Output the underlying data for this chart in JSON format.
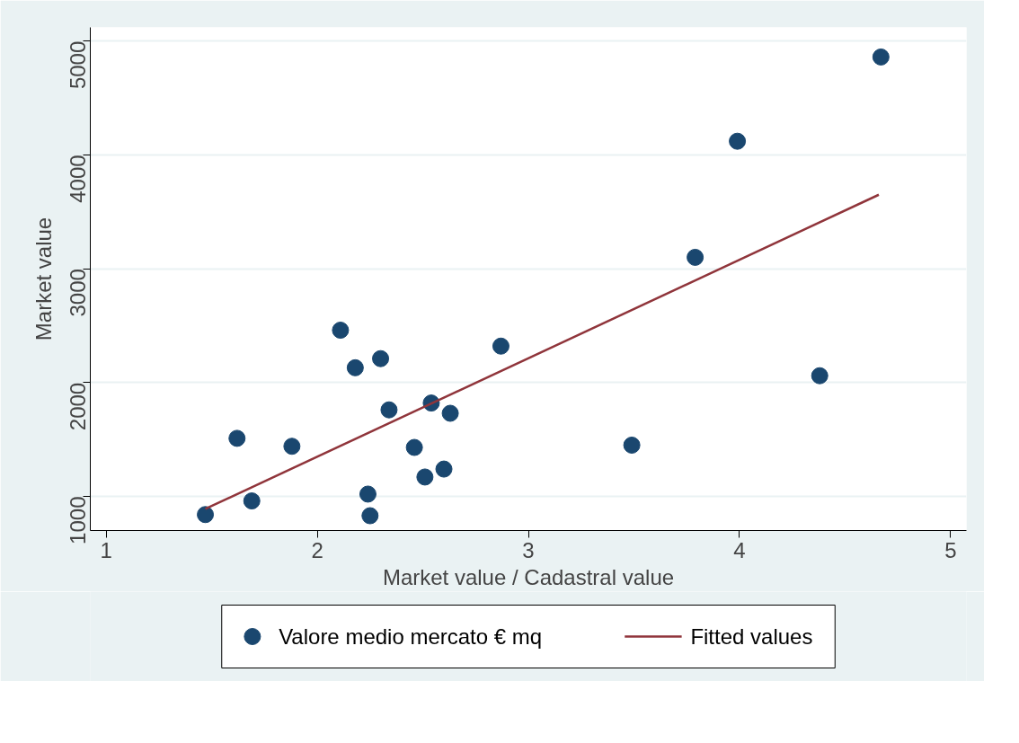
{
  "chart_data": {
    "type": "scatter",
    "xlabel": "Market value / Cadastral value",
    "ylabel": "Market value",
    "xlim": [
      0.925,
      5.075
    ],
    "ylim": [
      700,
      5120
    ],
    "xticks": [
      1,
      2,
      3,
      4,
      5
    ],
    "yticks": [
      1000,
      2000,
      3000,
      4000,
      5000
    ],
    "grid": "y",
    "legend": "bottom",
    "series": [
      {
        "name": "Valore medio mercato € mq",
        "color": "#1a476f",
        "marker": "circle",
        "x": [
          1.47,
          1.62,
          1.69,
          1.88,
          2.11,
          2.18,
          2.3,
          2.24,
          2.25,
          2.34,
          2.46,
          2.51,
          2.54,
          2.6,
          2.63,
          2.87,
          3.49,
          3.79,
          3.99,
          4.38,
          4.67
        ],
        "values": [
          840,
          1510,
          960,
          1440,
          2460,
          2130,
          2210,
          1020,
          830,
          1760,
          1430,
          1170,
          1820,
          1240,
          1730,
          2320,
          1450,
          3100,
          4120,
          2060,
          4860
        ]
      },
      {
        "name": "Fitted values",
        "type": "line",
        "color": "#90353b",
        "line_style": "solid",
        "x": [
          1.47,
          4.66
        ],
        "values": [
          890,
          3650
        ]
      }
    ]
  }
}
